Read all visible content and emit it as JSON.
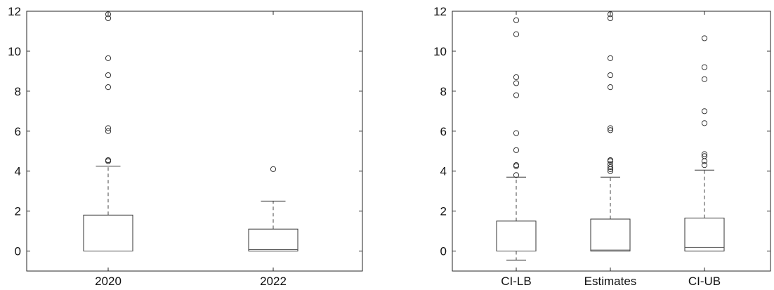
{
  "chart_data": [
    {
      "type": "box",
      "title": "",
      "xlabel": "",
      "ylabel": "",
      "ylim": [
        -1,
        12
      ],
      "yticks": [
        0,
        2,
        4,
        6,
        8,
        10,
        12
      ],
      "grid": false,
      "categories": [
        "2020",
        "2022"
      ],
      "boxes": [
        {
          "min": 0,
          "q1": 0,
          "median": 0,
          "q3": 1.8,
          "max": 4.25,
          "outliers": [
            4.5,
            4.55,
            6.0,
            6.15,
            8.2,
            8.8,
            9.65,
            11.65,
            11.85
          ]
        },
        {
          "min": 0,
          "q1": 0,
          "median": 0.07,
          "q3": 1.1,
          "max": 2.5,
          "outliers": [
            4.1
          ]
        }
      ]
    },
    {
      "type": "box",
      "title": "",
      "xlabel": "",
      "ylabel": "",
      "ylim": [
        -1,
        12
      ],
      "yticks": [
        0,
        2,
        4,
        6,
        8,
        10,
        12
      ],
      "grid": false,
      "categories": [
        "CI-LB",
        "Estimates",
        "CI-UB"
      ],
      "boxes": [
        {
          "min": -0.45,
          "q1": 0,
          "median": 0,
          "q3": 1.5,
          "max": 3.7,
          "outliers": [
            3.8,
            4.25,
            4.3,
            5.05,
            5.9,
            7.8,
            8.4,
            8.7,
            10.85,
            11.55
          ]
        },
        {
          "min": 0,
          "q1": 0,
          "median": 0.05,
          "q3": 1.6,
          "max": 3.7,
          "outliers": [
            4.0,
            4.1,
            4.2,
            4.35,
            4.5,
            4.55,
            6.05,
            6.15,
            8.2,
            8.8,
            9.65,
            11.65,
            11.85
          ]
        },
        {
          "min": 0,
          "q1": 0,
          "median": 0.18,
          "q3": 1.65,
          "max": 4.05,
          "outliers": [
            4.3,
            4.5,
            4.75,
            4.85,
            6.4,
            7.0,
            8.6,
            9.2,
            10.65
          ]
        }
      ]
    }
  ]
}
